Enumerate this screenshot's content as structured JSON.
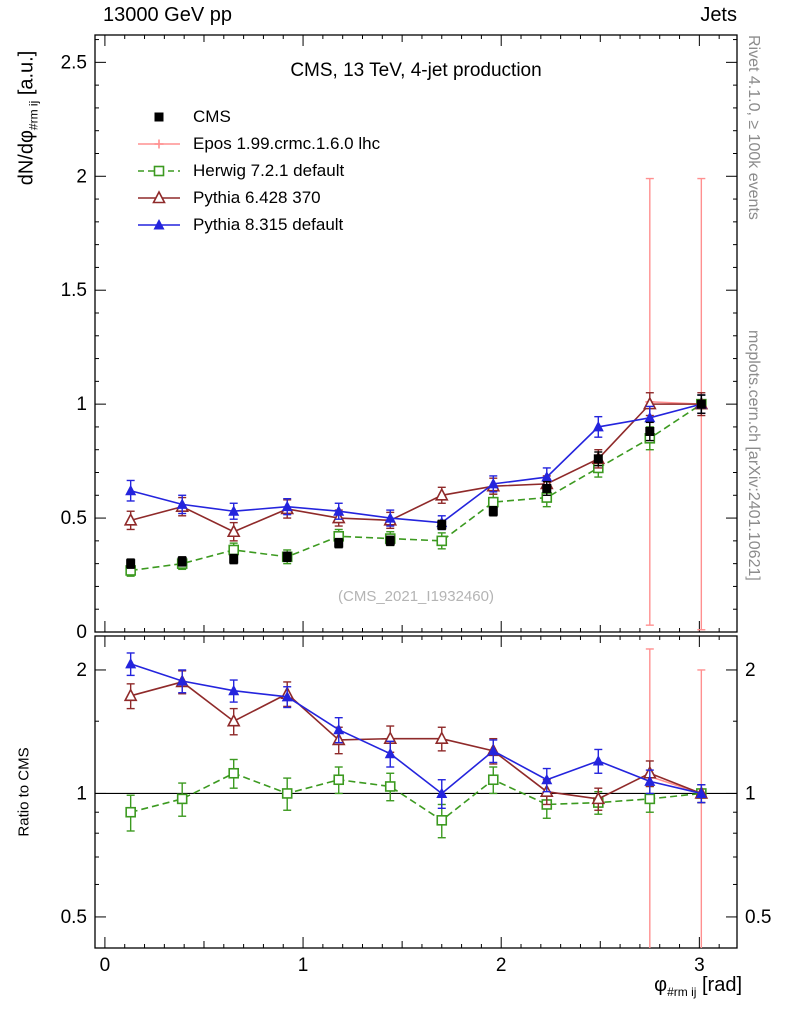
{
  "header": {
    "left": "13000 GeV pp",
    "right": "Jets"
  },
  "title": "CMS, 13 TeV, 4-jet production",
  "watermark": "(CMS_2021_I1932460)",
  "side_notes": {
    "rivet": "Rivet 4.1.0, ≥ 100k events",
    "mcplots": "mcplots.cern.ch [arXiv:2401.10621]"
  },
  "axis_labels": {
    "y_main": "dN/dφ",
    "y_sub": "#rm ij",
    "y_units": " [a.u.]",
    "x_main": "φ",
    "x_sub": "#rm ij",
    "x_units": " [rad]",
    "ratio": "Ratio to CMS"
  },
  "chart_data": [
    {
      "type": "scatter",
      "panel": "main",
      "title": "CMS, 13 TeV, 4-jet production",
      "xlabel": "phi_ij [rad]",
      "ylabel": "dN/dphi_ij [a.u.]",
      "xlim": [
        -0.05,
        3.19
      ],
      "ylim": [
        0,
        2.62
      ],
      "yscale": "linear",
      "grid": false,
      "legend_position": "top-left",
      "xticks_major": [
        0,
        1,
        2,
        3
      ],
      "yticks_major": [
        0,
        0.5,
        1,
        1.5,
        2,
        2.5
      ],
      "x": [
        0.13,
        0.39,
        0.65,
        0.92,
        1.18,
        1.44,
        1.7,
        1.96,
        2.23,
        2.49,
        2.75,
        3.01
      ],
      "series": [
        {
          "name": "CMS",
          "color": "#000000",
          "marker": "filled-square",
          "line": "none",
          "values": [
            0.3,
            0.31,
            0.32,
            0.33,
            0.39,
            0.4,
            0.47,
            0.53,
            0.63,
            0.76,
            0.88,
            1.0
          ],
          "errors": [
            0.02,
            0.02,
            0.02,
            0.02,
            0.02,
            0.02,
            0.02,
            0.02,
            0.03,
            0.03,
            0.04,
            0.04
          ]
        },
        {
          "name": "Epos 1.99.crmc.1.6.0 lhc",
          "color": "#ff9090",
          "marker": "open-cross",
          "line": "solid",
          "x": [
            2.75,
            3.01
          ],
          "values": [
            1.01,
            1.0
          ],
          "errors": [
            0.98,
            0.99
          ]
        },
        {
          "name": "Herwig 7.2.1 default",
          "color": "#3c9a20",
          "marker": "open-square",
          "line": "dashed",
          "values": [
            0.27,
            0.3,
            0.36,
            0.33,
            0.42,
            0.41,
            0.4,
            0.57,
            0.59,
            0.72,
            0.85,
            1.0
          ],
          "errors": [
            0.025,
            0.025,
            0.03,
            0.03,
            0.03,
            0.03,
            0.035,
            0.035,
            0.04,
            0.04,
            0.05,
            0.04
          ]
        },
        {
          "name": "Pythia 6.428 370",
          "color": "#8f2a2a",
          "marker": "open-triangle",
          "line": "solid",
          "values": [
            0.49,
            0.55,
            0.44,
            0.54,
            0.5,
            0.49,
            0.6,
            0.64,
            0.65,
            0.76,
            1.0,
            1.0
          ],
          "errors": [
            0.04,
            0.04,
            0.04,
            0.04,
            0.035,
            0.035,
            0.035,
            0.035,
            0.035,
            0.04,
            0.05,
            0.05
          ]
        },
        {
          "name": "Pythia 8.315 default",
          "color": "#2424dd",
          "marker": "filled-triangle",
          "line": "solid",
          "values": [
            0.62,
            0.56,
            0.53,
            0.55,
            0.53,
            0.5,
            0.48,
            0.65,
            0.68,
            0.9,
            0.94,
            1.0
          ],
          "errors": [
            0.045,
            0.04,
            0.035,
            0.035,
            0.035,
            0.035,
            0.03,
            0.035,
            0.04,
            0.045,
            0.05,
            0.04
          ]
        }
      ]
    },
    {
      "type": "scatter",
      "panel": "ratio",
      "ylabel": "Ratio to CMS",
      "xlim": [
        -0.05,
        3.19
      ],
      "ylim": [
        0.42,
        2.42
      ],
      "yscale": "log",
      "grid": false,
      "reference_line": 1,
      "yticks_major": [
        0.5,
        1,
        2
      ],
      "yticks_minor": [
        0.6,
        0.7,
        0.8,
        0.9,
        1.5
      ],
      "x": [
        0.13,
        0.39,
        0.65,
        0.92,
        1.18,
        1.44,
        1.7,
        1.96,
        2.23,
        2.49,
        2.75,
        3.01
      ],
      "series": [
        {
          "name": "Epos 1.99.crmc.1.6.0 lhc",
          "color": "#ff9090",
          "marker": "open-cross",
          "line": "solid",
          "x": [
            2.75,
            3.01
          ],
          "values": [
            1.1,
            1.0
          ],
          "errors": [
            1.15,
            1.0
          ]
        },
        {
          "name": "Herwig 7.2.1 default",
          "color": "#3c9a20",
          "marker": "open-square",
          "line": "dashed",
          "values": [
            0.9,
            0.97,
            1.12,
            1.0,
            1.08,
            1.04,
            0.86,
            1.08,
            0.94,
            0.95,
            0.97,
            1.0
          ],
          "errors": [
            0.09,
            0.09,
            0.09,
            0.09,
            0.08,
            0.08,
            0.08,
            0.08,
            0.07,
            0.06,
            0.07,
            0.05
          ]
        },
        {
          "name": "Pythia 6.428 370",
          "color": "#8f2a2a",
          "marker": "open-triangle",
          "line": "solid",
          "values": [
            1.73,
            1.87,
            1.5,
            1.75,
            1.35,
            1.36,
            1.36,
            1.27,
            1.01,
            0.97,
            1.12,
            1.0
          ],
          "errors": [
            0.12,
            0.12,
            0.11,
            0.12,
            0.1,
            0.1,
            0.09,
            0.09,
            0.07,
            0.06,
            0.08,
            0.05
          ]
        },
        {
          "name": "Pythia 8.315 default",
          "color": "#2424dd",
          "marker": "filled-triangle",
          "line": "solid",
          "values": [
            2.07,
            1.88,
            1.78,
            1.72,
            1.43,
            1.25,
            1.0,
            1.27,
            1.08,
            1.2,
            1.07,
            1.0
          ],
          "errors": [
            0.13,
            0.12,
            0.11,
            0.1,
            0.1,
            0.09,
            0.08,
            0.08,
            0.07,
            0.08,
            0.07,
            0.05
          ]
        }
      ]
    }
  ]
}
